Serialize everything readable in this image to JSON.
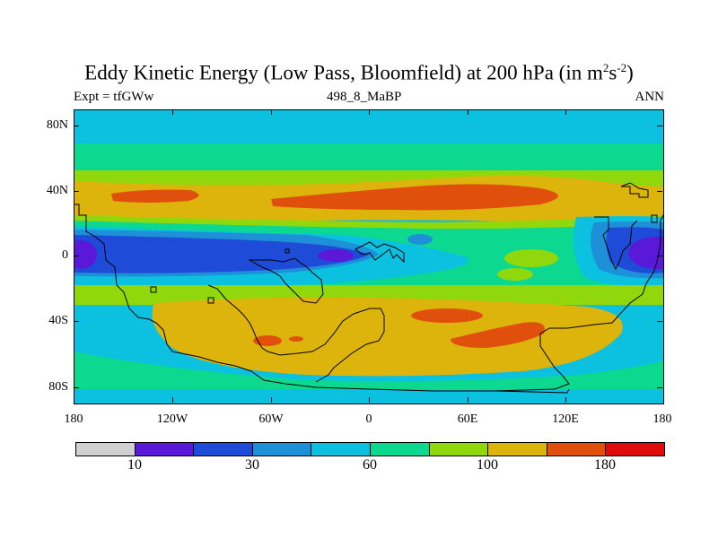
{
  "title": {
    "main": "Eddy Kinetic Energy (Low Pass, Bloomfield) at 200 hPa (in m",
    "sup1": "2",
    "s": "s",
    "sup2": "-2",
    "close": ")"
  },
  "left_label": "Expt = tfGWw",
  "center_label": "498_8_MaBP",
  "right_label": "ANN",
  "lat_labels": [
    "80N",
    "40N",
    "0",
    "40S",
    "80S"
  ],
  "lon_labels": [
    "180",
    "120W",
    "60W",
    "0",
    "60E",
    "120E",
    "180"
  ],
  "colorbar": {
    "colors": [
      "#d0d0d0",
      "#5a18d9",
      "#1e4cd8",
      "#1e90d8",
      "#0cc0e0",
      "#0cd890",
      "#90d80c",
      "#dcb40c",
      "#e0500c",
      "#e00c0c"
    ],
    "labels": [
      "10",
      "30",
      "60",
      "100",
      "180"
    ]
  },
  "map_colors": {
    "extreme_low": "#5a18d9",
    "very_low": "#1e4cd8",
    "low": "#1e90d8",
    "mid_low": "#0cc0e0",
    "mid": "#0cd890",
    "mid_high": "#90d80c",
    "high": "#dcb40c",
    "very_high": "#e0500c"
  }
}
